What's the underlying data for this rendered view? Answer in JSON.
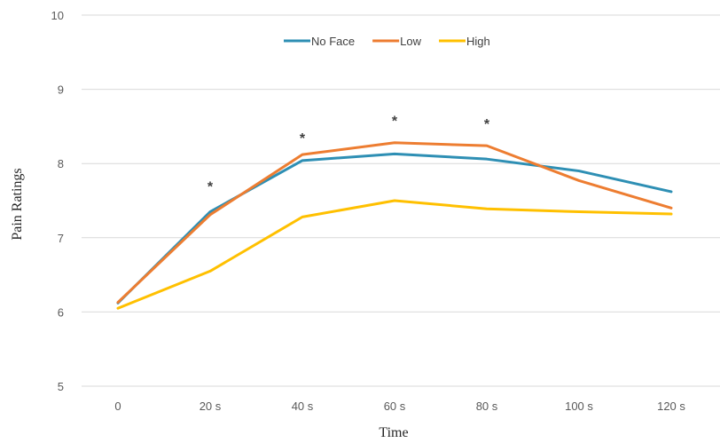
{
  "chart_data": {
    "type": "line",
    "categories": [
      "0",
      "20 s",
      "40 s",
      "60 s",
      "80 s",
      "100 s",
      "120 s"
    ],
    "series": [
      {
        "name": "No Face",
        "color": "#2E8FB4",
        "values": [
          6.12,
          7.35,
          8.04,
          8.13,
          8.06,
          7.9,
          7.62
        ]
      },
      {
        "name": "Low",
        "color": "#ED7D31",
        "values": [
          6.13,
          7.31,
          8.12,
          8.28,
          8.24,
          7.77,
          7.4
        ]
      },
      {
        "name": "High",
        "color": "#FFC000",
        "values": [
          6.05,
          6.55,
          7.28,
          7.5,
          7.39,
          7.35,
          7.32
        ]
      }
    ],
    "ylim": [
      5,
      10
    ],
    "yticks": [
      "5",
      "6",
      "7",
      "8",
      "9",
      "10"
    ],
    "xlabel": "Time",
    "ylabel": "Pain Ratings",
    "grid": true,
    "legend": "top-center",
    "significance_markers": [
      {
        "category": "20 s",
        "label": "*",
        "y": 7.7
      },
      {
        "category": "40 s",
        "label": "*",
        "y": 8.35
      },
      {
        "category": "60 s",
        "label": "*",
        "y": 8.58
      },
      {
        "category": "80 s",
        "label": "*",
        "y": 8.54
      }
    ]
  }
}
